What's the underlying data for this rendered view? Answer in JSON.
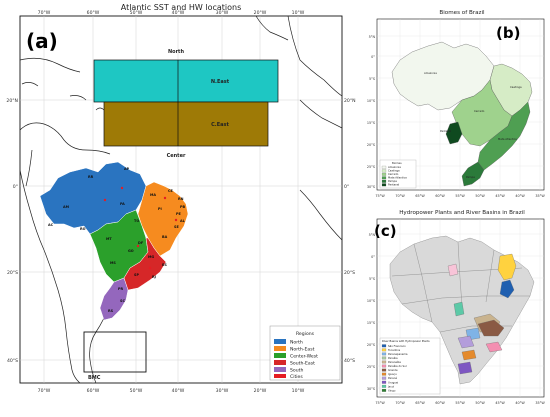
{
  "panel_a": {
    "label": "(a)",
    "title": "Atlantic SST and HW locations",
    "lon_ticks": [
      "70°W",
      "60°W",
      "50°W",
      "40°W",
      "30°W",
      "20°W",
      "10°W"
    ],
    "lat_ticks_left": [
      "20°N",
      "0°",
      "20°S",
      "40°S"
    ],
    "lat_ticks_right": [
      "20°N",
      "0°",
      "20°S",
      "40°S"
    ],
    "boxes": [
      {
        "name": "North",
        "label": "N.East",
        "color": "#1ec7c3"
      },
      {
        "name": "Center",
        "label": "C.East",
        "color": "#9e7a06"
      },
      {
        "name": "BMC",
        "label": "",
        "color": "none"
      }
    ],
    "legend": {
      "title": "Regions",
      "items": [
        {
          "label": "North",
          "color": "#2a74c0"
        },
        {
          "label": "North-East",
          "color": "#f68b1f"
        },
        {
          "label": "Center-West",
          "color": "#2ba02b"
        },
        {
          "label": "South-East",
          "color": "#d62728"
        },
        {
          "label": "South",
          "color": "#9467bd"
        },
        {
          "label": "Cities",
          "color": "#e51c23"
        }
      ]
    },
    "states": [
      "AM",
      "PA",
      "RR",
      "AP",
      "AC",
      "RO",
      "TO",
      "MA",
      "PI",
      "CE",
      "RN",
      "PB",
      "PE",
      "AL",
      "SE",
      "BA",
      "MT",
      "GO",
      "DF",
      "MS",
      "MG",
      "ES",
      "RJ",
      "SP",
      "PR",
      "SC",
      "RS"
    ]
  },
  "panel_b": {
    "label": "(b)",
    "title": "Biomes of Brazil",
    "lon_ticks": [
      "75°W",
      "70°W",
      "65°W",
      "60°W",
      "55°W",
      "50°W",
      "45°W",
      "40°W",
      "35°W"
    ],
    "lat_ticks": [
      "5°N",
      "0°",
      "5°S",
      "10°S",
      "15°S",
      "20°S",
      "25°S",
      "30°S"
    ],
    "map_labels": [
      "Amazonia",
      "Caatinga",
      "Cerrado",
      "Pantanal",
      "Mata Atlantica",
      "Pampa"
    ],
    "legend": {
      "title": "Biomes",
      "items": [
        {
          "label": "Amazonia",
          "color": "#f2f7ee"
        },
        {
          "label": "Caatinga",
          "color": "#d6ecc6"
        },
        {
          "label": "Cerrado",
          "color": "#9fd28d"
        },
        {
          "label": "Mata Atlantica",
          "color": "#4f9f52"
        },
        {
          "label": "Pampa",
          "color": "#2b7a3a"
        },
        {
          "label": "Pantanal",
          "color": "#0f4a1f"
        }
      ]
    }
  },
  "panel_c": {
    "label": "(c)",
    "title": "Hydropower Plants and River Basins in Brazil",
    "lon_ticks": [
      "75°W",
      "70°W",
      "65°W",
      "60°W",
      "55°W",
      "50°W",
      "45°W",
      "40°W",
      "35°W"
    ],
    "lat_ticks": [
      "5°N",
      "0°",
      "5°S",
      "10°S",
      "15°S",
      "20°S",
      "25°S",
      "30°S"
    ],
    "legend": {
      "title": "River Basins with Hydropower Plants",
      "items": [
        {
          "label": "São Francisco",
          "color": "#1f5fb0"
        },
        {
          "label": "Tocantins",
          "color": "#ffd23f"
        },
        {
          "label": "Paranapanema",
          "color": "#7fb3e6"
        },
        {
          "label": "Paraíba",
          "color": "#a9c7a1"
        },
        {
          "label": "Paranaíba",
          "color": "#c9b38e"
        },
        {
          "label": "Paraíba do Sul",
          "color": "#f48fb1"
        },
        {
          "label": "Grande",
          "color": "#8a5a44"
        },
        {
          "label": "Iguaçu",
          "color": "#e48a2c"
        },
        {
          "label": "Paraná",
          "color": "#b39ddb"
        },
        {
          "label": "Uruguai",
          "color": "#7e57c2"
        },
        {
          "label": "Jacuí",
          "color": "#5cc9a7"
        },
        {
          "label": "Xingu",
          "color": "#2e7d32"
        }
      ]
    }
  }
}
